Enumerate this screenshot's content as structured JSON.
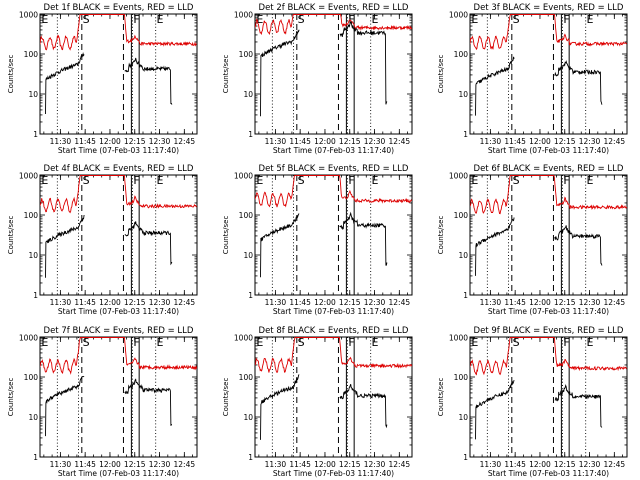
{
  "chart_data": {
    "type": "line",
    "layout": "3x3 grid of log-scale time-series panels",
    "ylabel": "Counts/sec",
    "xlabel": "Start Time (07-Feb-03 11:17:40)",
    "yscale": "log",
    "ylim": [
      1,
      1000
    ],
    "yticks": [
      {
        "value": 1,
        "label": "1"
      },
      {
        "value": 10,
        "label": "10"
      },
      {
        "value": 100,
        "label": "100"
      },
      {
        "value": 1000,
        "label": "1000"
      }
    ],
    "x_unit": "minutes after 11:17:40 UT",
    "xlim": [
      0,
      95
    ],
    "xticks": [
      {
        "value": 12.33,
        "label": "11:30"
      },
      {
        "value": 27.33,
        "label": "11:45"
      },
      {
        "value": 42.33,
        "label": "12:00"
      },
      {
        "value": 57.33,
        "label": "12:15"
      },
      {
        "value": 72.33,
        "label": "12:30"
      },
      {
        "value": 87.33,
        "label": "12:45"
      }
    ],
    "markers": {
      "dotted": [
        10.5,
        23.3,
        56.0,
        70.0
      ],
      "dashed": [
        25.3,
        50.5
      ],
      "solid": [
        55.3,
        60.0
      ],
      "letters": [
        {
          "text": "E",
          "x": 0.8
        },
        {
          "text": "S",
          "x": 25.8
        },
        {
          "text": "F",
          "x": 56.5
        },
        {
          "text": "E",
          "x": 70.5
        }
      ]
    },
    "series_legend": {
      "black": "Events",
      "red": "LLD"
    },
    "panels": [
      {
        "title": "Det 1f BLACK = Events, RED = LLD",
        "red_base": 190,
        "black_base": 55,
        "black_after": 50
      },
      {
        "title": "Det 2f BLACK = Events, RED = LLD",
        "red_base": 480,
        "black_base": 210,
        "black_after": 400
      },
      {
        "title": "Det 3f BLACK = Events, RED = LLD",
        "red_base": 190,
        "black_base": 42,
        "black_after": 42
      },
      {
        "title": "Det 4f BLACK = Events, RED = LLD",
        "red_base": 175,
        "black_base": 48,
        "black_after": 42
      },
      {
        "title": "Det 5f BLACK = Events, RED = LLD",
        "red_base": 240,
        "black_base": 58,
        "black_after": 65
      },
      {
        "title": "Det 6f BLACK = Events, RED = LLD",
        "red_base": 165,
        "black_base": 42,
        "black_after": 35
      },
      {
        "title": "Det 7f BLACK = Events, RED = LLD",
        "red_base": 185,
        "black_base": 58,
        "black_after": 55
      },
      {
        "title": "Det 8f BLACK = Events, RED = LLD",
        "red_base": 200,
        "black_base": 55,
        "black_after": 40
      },
      {
        "title": "Det 9f BLACK = Events, RED = LLD",
        "red_base": 175,
        "black_base": 42,
        "black_after": 38
      }
    ],
    "colors": {
      "events": "#000000",
      "lld": "#dd0000",
      "axes": "#000000"
    },
    "grid": false
  }
}
